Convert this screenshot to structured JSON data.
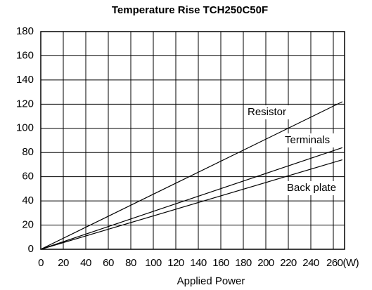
{
  "chart_data": {
    "type": "line",
    "title": "Temperature Rise  TCH250C50F",
    "x_label": "Applied Power",
    "xlim": [
      0,
      270
    ],
    "ylim": [
      0,
      180
    ],
    "xticks": [
      0,
      20,
      40,
      60,
      80,
      100,
      120,
      140,
      160,
      180,
      200,
      220,
      240,
      {
        "value": 260,
        "label": "260(W)"
      }
    ],
    "yticks": [
      0,
      20,
      40,
      60,
      80,
      100,
      120,
      140,
      160,
      180
    ],
    "grid": true,
    "x": [
      0,
      268
    ],
    "series": [
      {
        "name": "Resistor",
        "color": "#000000",
        "values": [
          0,
          122
        ]
      },
      {
        "name": "Terminals",
        "color": "#000000",
        "values": [
          0,
          84
        ]
      },
      {
        "name": "Back plate",
        "color": "#000000",
        "values": [
          0,
          74
        ]
      }
    ]
  }
}
